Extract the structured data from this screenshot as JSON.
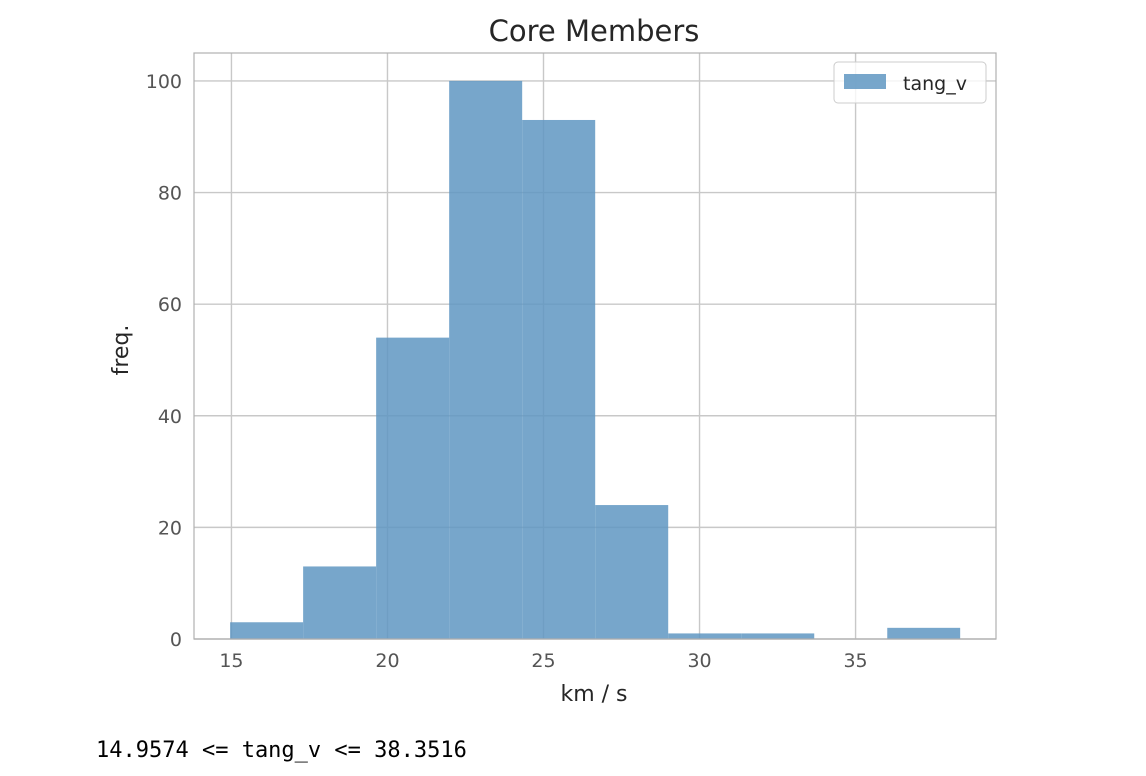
{
  "chart_data": {
    "type": "bar",
    "title": "Core Members",
    "xlabel": "km / s",
    "ylabel": "freq.",
    "bin_edges": [
      14.9574,
      17.29716,
      19.63692,
      21.97668,
      24.31644,
      26.6562,
      28.99596,
      31.33572,
      33.67548,
      36.01524,
      38.3516
    ],
    "values": [
      3,
      13,
      54,
      100,
      93,
      24,
      1,
      1,
      0,
      2
    ],
    "series": [
      {
        "name": "tang_v",
        "color": "#5f97c2"
      }
    ],
    "xlim": [
      13.8,
      39.5
    ],
    "ylim": [
      0,
      105
    ],
    "xticks": [
      15,
      20,
      25,
      30,
      35
    ],
    "yticks": [
      0,
      20,
      40,
      60,
      80,
      100
    ],
    "grid": true,
    "legend": "top-right"
  },
  "output": {
    "range_text": "14.9574 <= tang_v <= 38.3516"
  }
}
